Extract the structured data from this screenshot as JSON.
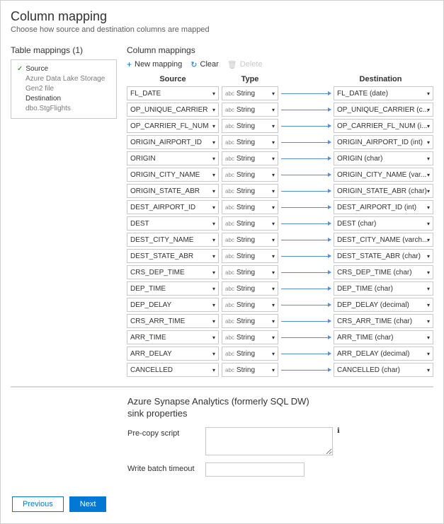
{
  "header": {
    "title": "Column mapping",
    "subtitle": "Choose how source and destination columns are mapped"
  },
  "tableMappings": {
    "heading": "Table mappings (1)",
    "sourceLabel": "Source",
    "sourceDetail": "Azure Data Lake Storage Gen2 file",
    "destLabel": "Destination",
    "destDetail": "dbo.StgFlights"
  },
  "columnMappings": {
    "heading": "Column mappings",
    "toolbar": {
      "newMapping": "New mapping",
      "clear": "Clear",
      "delete": "Delete"
    },
    "headers": {
      "source": "Source",
      "type": "Type",
      "destination": "Destination"
    },
    "rows": [
      {
        "source": "FL_DATE",
        "type": "String",
        "dest": "FL_DATE (date)"
      },
      {
        "source": "OP_UNIQUE_CARRIER",
        "type": "String",
        "dest": "OP_UNIQUE_CARRIER (c..."
      },
      {
        "source": "OP_CARRIER_FL_NUM",
        "type": "String",
        "dest": "OP_CARRIER_FL_NUM (i..."
      },
      {
        "source": "ORIGIN_AIRPORT_ID",
        "type": "String",
        "dest": "ORIGIN_AIRPORT_ID (int)"
      },
      {
        "source": "ORIGIN",
        "type": "String",
        "dest": "ORIGIN (char)"
      },
      {
        "source": "ORIGIN_CITY_NAME",
        "type": "String",
        "dest": "ORIGIN_CITY_NAME (var..."
      },
      {
        "source": "ORIGIN_STATE_ABR",
        "type": "String",
        "dest": "ORIGIN_STATE_ABR (char)"
      },
      {
        "source": "DEST_AIRPORT_ID",
        "type": "String",
        "dest": "DEST_AIRPORT_ID (int)"
      },
      {
        "source": "DEST",
        "type": "String",
        "dest": "DEST (char)"
      },
      {
        "source": "DEST_CITY_NAME",
        "type": "String",
        "dest": "DEST_CITY_NAME (varch..."
      },
      {
        "source": "DEST_STATE_ABR",
        "type": "String",
        "dest": "DEST_STATE_ABR (char)"
      },
      {
        "source": "CRS_DEP_TIME",
        "type": "String",
        "dest": "CRS_DEP_TIME (char)"
      },
      {
        "source": "DEP_TIME",
        "type": "String",
        "dest": "DEP_TIME (char)"
      },
      {
        "source": "DEP_DELAY",
        "type": "String",
        "dest": "DEP_DELAY (decimal)"
      },
      {
        "source": "CRS_ARR_TIME",
        "type": "String",
        "dest": "CRS_ARR_TIME (char)"
      },
      {
        "source": "ARR_TIME",
        "type": "String",
        "dest": "ARR_TIME (char)"
      },
      {
        "source": "ARR_DELAY",
        "type": "String",
        "dest": "ARR_DELAY (decimal)"
      },
      {
        "source": "CANCELLED",
        "type": "String",
        "dest": "CANCELLED (char)"
      }
    ]
  },
  "sink": {
    "title": "Azure Synapse Analytics (formerly SQL DW)",
    "subtitle": "sink properties",
    "preCopyLabel": "Pre-copy script",
    "preCopyValue": "",
    "batchTimeoutLabel": "Write batch timeout",
    "batchTimeoutValue": ""
  },
  "footer": {
    "prev": "Previous",
    "next": "Next"
  }
}
